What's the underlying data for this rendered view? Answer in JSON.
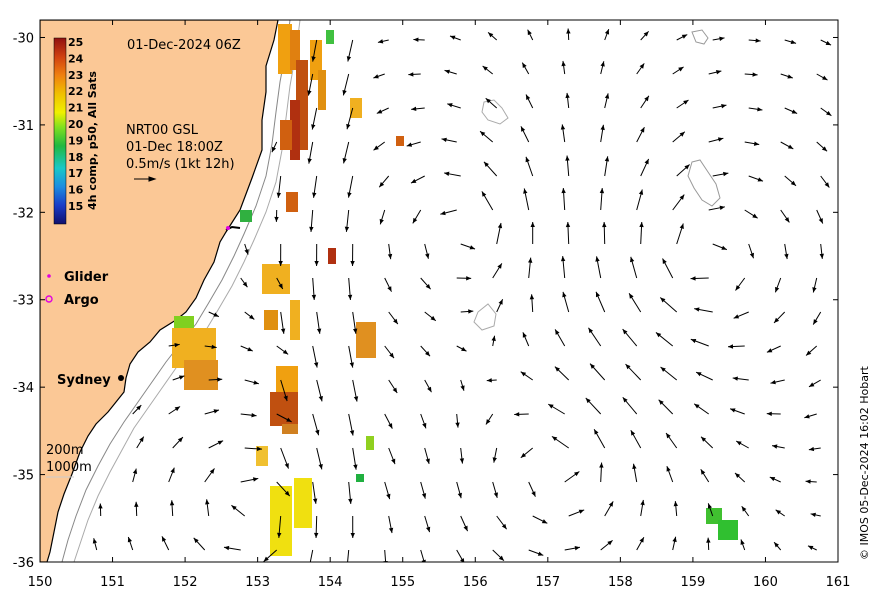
{
  "map": {
    "timestamp": "01-Dec-2024 06Z",
    "product_line1": "NRT00 GSL",
    "product_line2": "01-Dec 18:00Z",
    "arrow_scale_label": "0.5m/s (1kt 12h)",
    "lon_ticks": [
      150,
      151,
      152,
      153,
      154,
      155,
      156,
      157,
      158,
      159,
      160,
      161
    ],
    "lat_ticks": [
      -30,
      -31,
      -32,
      -33,
      -34,
      -35,
      -36
    ],
    "lon_tick_labels": [
      "150",
      "151",
      "152",
      "153",
      "154",
      "155",
      "156",
      "157",
      "158",
      "159",
      "160",
      "161"
    ],
    "lat_tick_labels": [
      "-30",
      "-31",
      "-32",
      "-33",
      "-34",
      "-35",
      "-36"
    ],
    "lon_range": [
      150,
      161
    ],
    "lat_range": [
      -36,
      -29.8
    ],
    "colors": {
      "land": "#fbc896",
      "ocean": "#ffffff",
      "glider": "#e000e0",
      "argo": "#e000e0"
    }
  },
  "colorbar": {
    "title": "4h comp, p50, All Sats",
    "ticks": [
      "25",
      "24",
      "23",
      "22",
      "21",
      "20",
      "19",
      "18",
      "17",
      "16",
      "15"
    ],
    "min": 15,
    "max": 25
  },
  "legend": {
    "glider_label": "Glider",
    "argo_label": "Argo",
    "contour_200": "200m",
    "contour_1000": "1000m"
  },
  "places": {
    "sydney": "Sydney"
  },
  "credit": "© IMOS 05-Dec-2024 16:02 Hobart"
}
